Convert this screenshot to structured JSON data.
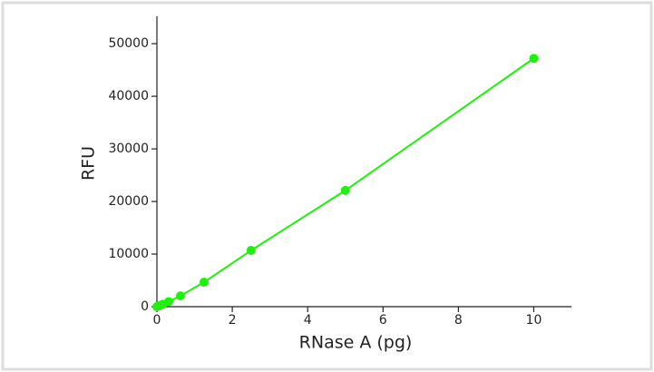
{
  "chart_data": {
    "type": "line",
    "x_label": "RNase A (pg)",
    "y_label": "RFU",
    "x": [
      0,
      0.078,
      0.156,
      0.3125,
      0.625,
      1.25,
      2.5,
      5,
      10
    ],
    "series": [
      {
        "color": "#22ee11",
        "values": [
          0,
          200,
          450,
          950,
          2050,
          4650,
          10700,
          22100,
          47200
        ]
      }
    ],
    "xlim": [
      0,
      11
    ],
    "xticks": [
      0,
      2,
      4,
      6,
      8,
      10
    ],
    "ylim": [
      0,
      55200
    ],
    "yticks": [
      0,
      10000,
      20000,
      30000,
      40000,
      50000
    ]
  }
}
